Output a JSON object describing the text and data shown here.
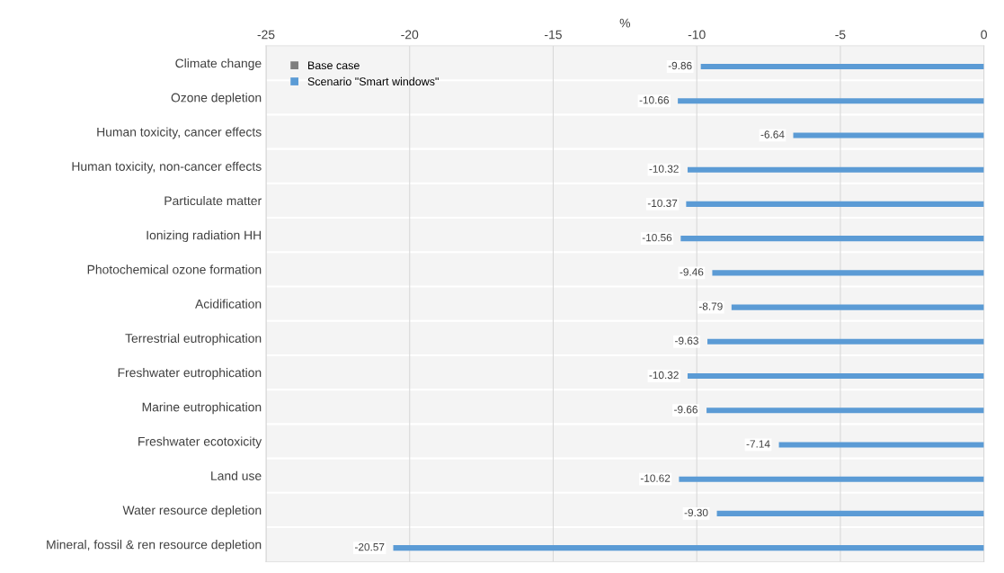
{
  "chart_data": {
    "type": "bar",
    "orientation": "horizontal",
    "xlabel": "%",
    "categories": [
      "Climate change",
      "Ozone depletion",
      "Human toxicity, cancer effects",
      "Human toxicity, non-cancer effects",
      "Particulate matter",
      "Ionizing radiation HH",
      "Photochemical ozone formation",
      "Acidification",
      "Terrestrial eutrophication",
      "Freshwater eutrophication",
      "Marine eutrophication",
      "Freshwater ecotoxicity",
      "Land use",
      "Water resource depletion",
      "Mineral, fossil & ren resource depletion"
    ],
    "series": [
      {
        "name": "Base case",
        "color": "#7f7f7f",
        "values": [
          0,
          0,
          0,
          0,
          0,
          0,
          0,
          0,
          0,
          0,
          0,
          0,
          0,
          0,
          0
        ]
      },
      {
        "name": "Scenario \"Smart windows\"",
        "color": "#5b9bd5",
        "values": [
          -9.86,
          -10.66,
          -6.64,
          -10.32,
          -10.37,
          -10.56,
          -9.46,
          -8.79,
          -9.63,
          -10.32,
          -9.66,
          -7.14,
          -10.62,
          -9.3,
          -20.57
        ],
        "value_labels": [
          "-9.86",
          "-10.66",
          "-6.64",
          "-10.32",
          "-10.37",
          "-10.56",
          "-9.46",
          "-8.79",
          "-9.63",
          "-10.32",
          "-9.66",
          "-7.14",
          "-10.62",
          "-9.30",
          "-20.57"
        ]
      }
    ],
    "xlim": [
      -25,
      0
    ],
    "xticks": [
      -25,
      -20,
      -15,
      -10,
      -5,
      0
    ],
    "grid": "x",
    "legend": "top left"
  }
}
